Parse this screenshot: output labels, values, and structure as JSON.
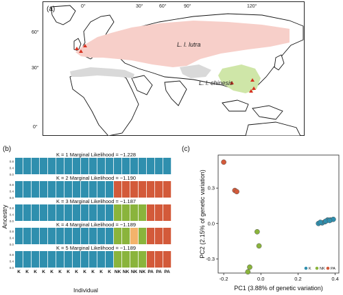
{
  "figure": {
    "panel_a": {
      "label": "(a)",
      "lon_ticks": [
        "0°",
        "30°",
        "60°",
        "90°",
        "120°"
      ],
      "lat_ticks": [
        "60°",
        "30°",
        "0°"
      ],
      "range_label_lutra": "L. l. lutra",
      "range_label_chinesis": "L. l. chinesis",
      "colors": {
        "lutra_range": "#f7cfc9",
        "chinesis_range": "#cfe6a8",
        "other_range": "#d9d9d9",
        "sample_marker": "#d7301f"
      }
    },
    "panel_b": {
      "label": "(b)",
      "ylabel": "Ancestry",
      "xlabel": "Individual",
      "ytick_labels": [
        "0.0",
        "0.4",
        "0.8"
      ],
      "individuals": [
        "K",
        "K",
        "K",
        "K",
        "K",
        "K",
        "K",
        "K",
        "K",
        "K",
        "K",
        "K",
        "NK",
        "NK",
        "NK",
        "NK",
        "PA",
        "PA",
        "PA"
      ],
      "colors": {
        "teal": "#2f8fae",
        "orange": "#d35a3a",
        "green": "#8ab43c",
        "peach": "#f3b36b"
      },
      "rows": [
        {
          "title": "K = 1  Marginal Likelihood = −1.228",
          "pattern": [
            "teal",
            "teal",
            "teal",
            "teal",
            "teal",
            "teal",
            "teal",
            "teal",
            "teal",
            "teal",
            "teal",
            "teal",
            "teal",
            "teal",
            "teal",
            "teal",
            "teal",
            "teal",
            "teal"
          ]
        },
        {
          "title": "K = 2  Marginal Likelihood = −1.190",
          "pattern": [
            "teal",
            "teal",
            "teal",
            "teal",
            "teal",
            "teal",
            "teal",
            "teal",
            "teal",
            "teal",
            "teal",
            "teal",
            "orange",
            "orange",
            "orange",
            "orange",
            "orange",
            "orange",
            "orange"
          ]
        },
        {
          "title": "K = 3  Marginal Likelihood = −1.187",
          "pattern": [
            "teal",
            "teal",
            "teal",
            "teal",
            "teal",
            "teal",
            "teal",
            "teal",
            "teal",
            "teal",
            "teal",
            "teal",
            "green",
            "green",
            "green",
            "green",
            "orange",
            "orange",
            "orange"
          ]
        },
        {
          "title": "K = 4  Marginal Likelihood = −1.189",
          "pattern": [
            "teal",
            "teal",
            "teal",
            "teal",
            "teal",
            "teal",
            "teal",
            "teal",
            "teal",
            "teal",
            "teal",
            "teal",
            "green",
            "green",
            "peach",
            "green",
            "orange",
            "orange",
            "orange"
          ]
        },
        {
          "title": "K = 5  Marginal Likelihood = −1.189",
          "pattern": [
            "teal",
            "teal",
            "teal",
            "teal",
            "teal",
            "teal",
            "teal",
            "teal",
            "teal",
            "teal",
            "teal",
            "teal",
            "green",
            "green",
            "green",
            "green",
            "orange",
            "orange",
            "orange"
          ]
        }
      ]
    },
    "panel_c": {
      "label": "(c)",
      "chart_data": {
        "type": "scatter",
        "xlabel": "PC1 (3.88% of genetic variation)",
        "ylabel": "PC2 (2.15% of genetic variation)",
        "xlim": [
          -0.23,
          0.42
        ],
        "ylim": [
          -0.42,
          0.58
        ],
        "xticks": [
          "-0.2",
          "0.0",
          "0.2",
          "0.4"
        ],
        "yticks": [
          "-0.3",
          "0.0",
          "0.3"
        ],
        "legend": [
          "K",
          "NK",
          "PA"
        ],
        "legend_position": "bottom-right",
        "series": [
          {
            "name": "K",
            "color": "#2f8fae",
            "points": [
              [
                0.31,
                0.0
              ],
              [
                0.33,
                0.005
              ],
              [
                0.345,
                0.015
              ],
              [
                0.36,
                0.03
              ],
              [
                0.375,
                0.03
              ],
              [
                0.39,
                0.035
              ],
              [
                0.32,
                0.01
              ],
              [
                0.35,
                0.02
              ],
              [
                0.37,
                0.025
              ]
            ]
          },
          {
            "name": "NK",
            "color": "#8ab43c",
            "points": [
              [
                -0.02,
                -0.07
              ],
              [
                -0.01,
                -0.19
              ],
              [
                -0.06,
                -0.37
              ],
              [
                -0.07,
                -0.41
              ]
            ]
          },
          {
            "name": "PA",
            "color": "#d35a3a",
            "points": [
              [
                -0.2,
                0.52
              ],
              [
                -0.14,
                0.28
              ],
              [
                -0.13,
                0.27
              ]
            ]
          }
        ]
      }
    }
  }
}
